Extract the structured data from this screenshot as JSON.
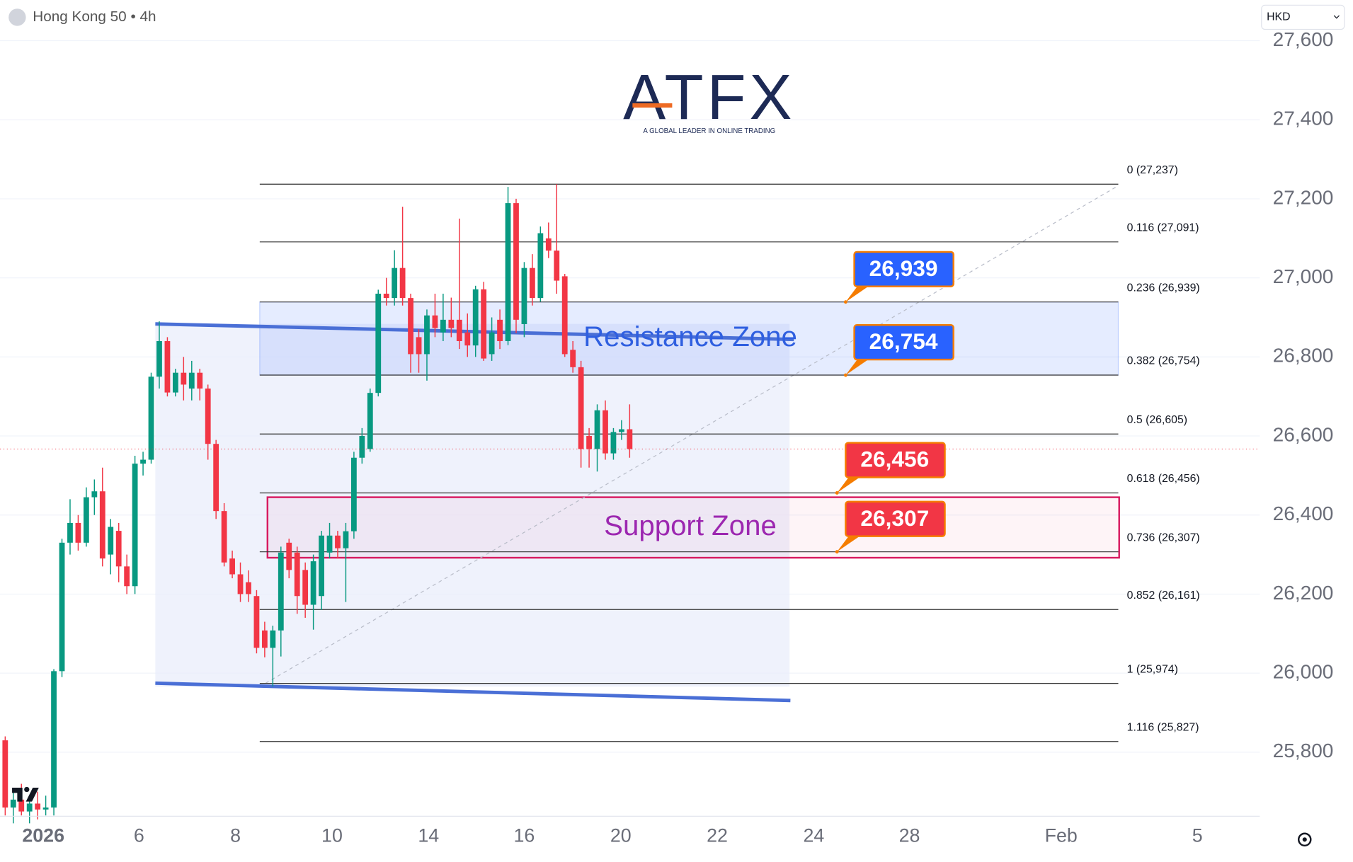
{
  "header": {
    "symbol": "Hong Kong 50 • 4h",
    "currency": "HKD"
  },
  "logo": {
    "brand": "ATFX",
    "tagline": "A GLOBAL LEADER IN ONLINE TRADING"
  },
  "chart_data": {
    "type": "candlestick",
    "x": [
      0,
      1,
      2,
      3,
      4,
      5,
      6,
      7,
      8,
      9,
      10,
      11,
      12,
      13,
      14,
      15,
      16,
      17,
      18,
      19,
      20,
      21,
      22,
      23,
      24,
      25,
      26,
      27,
      28,
      29,
      30,
      31,
      32,
      33,
      34,
      35,
      36,
      37,
      38,
      39,
      40,
      41,
      42,
      43,
      44,
      45,
      46,
      47,
      48,
      49,
      50,
      51,
      52,
      53,
      54,
      55,
      56,
      57,
      58,
      59,
      60,
      61,
      62,
      63,
      64,
      65,
      66,
      67,
      68,
      69,
      70,
      71,
      72,
      73,
      74,
      75,
      76,
      77
    ],
    "open": [
      25830,
      25660,
      25680,
      25650,
      25670,
      25655,
      25660,
      26005,
      26330,
      26380,
      26330,
      26445,
      26460,
      26300,
      26360,
      26270,
      26220,
      26530,
      26540,
      26750,
      26840,
      26710,
      26760,
      26720,
      26760,
      26720,
      26580,
      26410,
      26290,
      26250,
      26230,
      26195,
      26108,
      26064,
      26108,
      26330,
      26305,
      26261,
      26173,
      26195,
      26305,
      26348,
      26316,
      26359,
      26545,
      26567,
      26709,
      26960,
      26949,
      27025,
      26949,
      26850,
      26807,
      26905,
      26862,
      26894,
      26894,
      26862,
      26829,
      26971,
      26807,
      26894,
      26840,
      27189,
      26883,
      27025,
      26949,
      27100,
      27069,
      27004,
      26818,
      26774,
      26600,
      26567,
      26665,
      26556,
      26610,
      26617
    ],
    "high": [
      25840,
      25700,
      25720,
      25690,
      25700,
      25690,
      26010,
      26340,
      26440,
      26400,
      26470,
      26490,
      26520,
      26390,
      26380,
      26300,
      26550,
      26560,
      26760,
      26890,
      26850,
      26770,
      26800,
      26790,
      26770,
      26730,
      26590,
      26430,
      26310,
      26280,
      26260,
      26210,
      26130,
      26120,
      26320,
      26340,
      26320,
      26280,
      26300,
      26360,
      26380,
      26360,
      26380,
      26560,
      26620,
      26720,
      26970,
      27000,
      27070,
      27180,
      26960,
      26870,
      26920,
      26960,
      26960,
      26950,
      27150,
      26910,
      26980,
      26990,
      26900,
      26920,
      27230,
      27200,
      27040,
      27060,
      27130,
      27140,
      27237,
      27010,
      26840,
      26790,
      26620,
      26680,
      26690,
      26620,
      26640,
      26680
    ],
    "low": [
      25640,
      25620,
      25640,
      25620,
      25630,
      25640,
      25640,
      25990,
      26300,
      26310,
      26320,
      26400,
      26270,
      26250,
      26230,
      26200,
      26200,
      26500,
      26530,
      26720,
      26700,
      26700,
      26690,
      26690,
      26690,
      26540,
      26390,
      26270,
      26240,
      26180,
      26180,
      26050,
      26040,
      25966,
      26042,
      26240,
      26150,
      26140,
      26110,
      26160,
      26290,
      26290,
      26180,
      26340,
      26530,
      26560,
      26700,
      26930,
      26930,
      26930,
      26760,
      26760,
      26740,
      26850,
      26840,
      26850,
      26820,
      26800,
      26800,
      26790,
      26790,
      26820,
      26830,
      26860,
      26850,
      26930,
      26940,
      27050,
      26960,
      26800,
      26760,
      26520,
      26520,
      26510,
      26540,
      26540,
      26590,
      26545
    ],
    "close": [
      25660,
      25680,
      25650,
      25670,
      25655,
      25660,
      26005,
      26330,
      26380,
      26330,
      26445,
      26460,
      26290,
      26370,
      26270,
      26220,
      26530,
      26540,
      26750,
      26840,
      26710,
      26760,
      26730,
      26760,
      26720,
      26580,
      26410,
      26280,
      26250,
      26200,
      26200,
      26064,
      26064,
      26108,
      26305,
      26261,
      26195,
      26173,
      26283,
      26348,
      26348,
      26316,
      26359,
      26545,
      26600,
      26709,
      26960,
      26949,
      27025,
      26949,
      26807,
      26807,
      26905,
      26873,
      26894,
      26873,
      26840,
      26829,
      26971,
      26796,
      26862,
      26840,
      27189,
      26894,
      27025,
      26949,
      27113,
      27069,
      26993,
      26807,
      26774,
      26567,
      26567,
      26665,
      26556,
      26610,
      26617,
      26567
    ],
    "up_color": "#089981",
    "down_color": "#f23645",
    "xlim": [
      -0.64,
      154.7
    ],
    "xticks": [
      {
        "value": 4.7,
        "label": "2026"
      },
      {
        "value": 16.5,
        "label": "6"
      },
      {
        "value": 28.4,
        "label": "8"
      },
      {
        "value": 40.3,
        "label": "10"
      },
      {
        "value": 52.2,
        "label": "14"
      },
      {
        "value": 64,
        "label": "16"
      },
      {
        "value": 75.9,
        "label": "20"
      },
      {
        "value": 87.8,
        "label": "22"
      },
      {
        "value": 99.7,
        "label": "24"
      },
      {
        "value": 111.5,
        "label": "28"
      },
      {
        "value": 130.2,
        "label": "Feb"
      },
      {
        "value": 147,
        "label": "5"
      }
    ],
    "ylim": [
      25638,
      27703
    ],
    "yticks": [
      {
        "value": 25800,
        "label": "25,800"
      },
      {
        "value": 26000,
        "label": "26,000"
      },
      {
        "value": 26200,
        "label": "26,200"
      },
      {
        "value": 26400,
        "label": "26,400"
      },
      {
        "value": 26600,
        "label": "26,600"
      },
      {
        "value": 26800,
        "label": "26,800"
      },
      {
        "value": 27000,
        "label": "27,000"
      },
      {
        "value": 27200,
        "label": "27,200"
      },
      {
        "value": 27400,
        "label": "27,400"
      },
      {
        "value": 27600,
        "label": "27,600"
      }
    ],
    "grid": true,
    "fib_levels": [
      {
        "value": 27237,
        "label": "0 (27,237)"
      },
      {
        "value": 27091,
        "label": "0.116 (27,091)"
      },
      {
        "value": 26939,
        "label": "0.236 (26,939)"
      },
      {
        "value": 26754,
        "label": "0.382 (26,754)"
      },
      {
        "value": 26605,
        "label": "0.5 (26,605)"
      },
      {
        "value": 26456,
        "label": "0.618 (26,456)"
      },
      {
        "value": 26307,
        "label": "0.736 (26,307)"
      },
      {
        "value": 26161,
        "label": "0.852 (26,161)"
      },
      {
        "value": 25974,
        "label": "1 (25,974)"
      },
      {
        "value": 25827,
        "label": "1.116 (25,827)"
      }
    ],
    "zones": [
      {
        "name": "Resistance Zone",
        "range": [
          26754,
          26939
        ],
        "color": "#2f5fe0"
      },
      {
        "name": "Support Zone",
        "range": [
          26292,
          26445
        ],
        "color": "#9c27b0"
      }
    ],
    "callouts": {
      "values": [
        26939,
        26754,
        26456,
        26307
      ],
      "value_labels": [
        "26,939",
        "26,754",
        "26,456",
        "26,307"
      ],
      "colors": [
        "#2962ff",
        "#2962ff",
        "#f23645",
        "#f23645"
      ]
    }
  }
}
